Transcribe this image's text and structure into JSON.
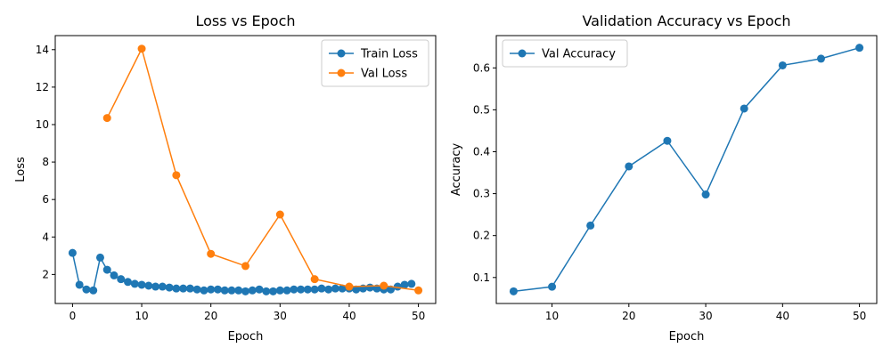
{
  "chart_data": [
    {
      "type": "line",
      "title": "Loss vs Epoch",
      "xlabel": "Epoch",
      "ylabel": "Loss",
      "xlim": [
        -2.5,
        52.5
      ],
      "ylim": [
        0.45,
        14.75
      ],
      "xticks": [
        0,
        10,
        20,
        30,
        40,
        50
      ],
      "yticks": [
        2,
        4,
        6,
        8,
        10,
        12,
        14
      ],
      "grid": false,
      "legend": "top-right",
      "series": [
        {
          "name": "Train Loss",
          "color": "#1f77b4",
          "x": [
            0,
            1,
            2,
            3,
            4,
            5,
            6,
            7,
            8,
            9,
            10,
            11,
            12,
            13,
            14,
            15,
            16,
            17,
            18,
            19,
            20,
            21,
            22,
            23,
            24,
            25,
            26,
            27,
            28,
            29,
            30,
            31,
            32,
            33,
            34,
            35,
            36,
            37,
            38,
            39,
            40,
            41,
            42,
            43,
            44,
            45,
            46,
            47,
            48,
            49
          ],
          "y": [
            3.15,
            1.45,
            1.2,
            1.15,
            2.9,
            2.25,
            1.95,
            1.75,
            1.6,
            1.5,
            1.45,
            1.4,
            1.35,
            1.35,
            1.3,
            1.25,
            1.25,
            1.25,
            1.2,
            1.15,
            1.2,
            1.2,
            1.15,
            1.15,
            1.15,
            1.1,
            1.15,
            1.2,
            1.1,
            1.1,
            1.15,
            1.15,
            1.2,
            1.2,
            1.2,
            1.2,
            1.25,
            1.2,
            1.25,
            1.25,
            1.25,
            1.2,
            1.25,
            1.3,
            1.25,
            1.2,
            1.2,
            1.35,
            1.45,
            1.5
          ]
        },
        {
          "name": "Val Loss",
          "color": "#ff7f0e",
          "x": [
            5,
            10,
            15,
            20,
            25,
            30,
            35,
            40,
            45,
            50
          ],
          "y": [
            10.35,
            14.05,
            7.3,
            3.1,
            2.45,
            5.2,
            1.75,
            1.35,
            1.4,
            1.15
          ]
        }
      ]
    },
    {
      "type": "line",
      "title": "Validation Accuracy vs Epoch",
      "xlabel": "Epoch",
      "ylabel": "Accuracy",
      "xlim": [
        2.75,
        52.25
      ],
      "ylim": [
        0.038,
        0.677
      ],
      "xticks": [
        10,
        20,
        30,
        40,
        50
      ],
      "yticks": [
        0.1,
        0.2,
        0.3,
        0.4,
        0.5,
        0.6
      ],
      "grid": false,
      "legend": "top-left",
      "series": [
        {
          "name": "Val Accuracy",
          "color": "#1f77b4",
          "x": [
            5,
            10,
            15,
            20,
            25,
            30,
            35,
            40,
            45,
            50
          ],
          "y": [
            0.067,
            0.078,
            0.224,
            0.365,
            0.426,
            0.298,
            0.503,
            0.606,
            0.622,
            0.648
          ]
        }
      ]
    }
  ]
}
